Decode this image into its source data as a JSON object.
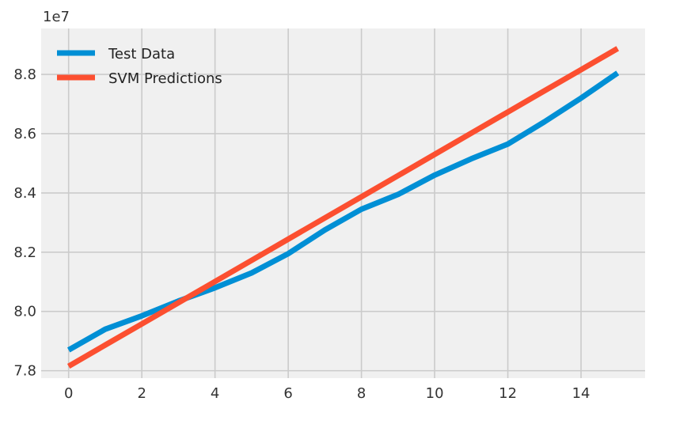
{
  "chart_data": {
    "type": "line",
    "title": "",
    "xlabel": "",
    "ylabel": "",
    "y_offset_label": "1e7",
    "xlim": [
      -0.75,
      15.75
    ],
    "ylim": [
      7.775,
      8.955
    ],
    "xticks": [
      0,
      2,
      4,
      6,
      8,
      10,
      12,
      14
    ],
    "yticks": [
      7.8,
      8.0,
      8.2,
      8.4,
      8.6,
      8.8
    ],
    "ytick_labels": [
      "7.8",
      "8.0",
      "8.2",
      "8.4",
      "8.6",
      "8.8"
    ],
    "grid": true,
    "legend_position": "upper-left",
    "x": [
      0,
      1,
      2,
      3,
      4,
      5,
      6,
      7,
      8,
      9,
      10,
      11,
      12,
      13,
      14,
      15
    ],
    "series": [
      {
        "name": "Test Data",
        "color": "#008fd5",
        "values": [
          7.87,
          7.94,
          7.985,
          8.035,
          8.08,
          8.13,
          8.195,
          8.275,
          8.345,
          8.395,
          8.46,
          8.515,
          8.565,
          8.64,
          8.72,
          8.805
        ]
      },
      {
        "name": "SVM Predictions",
        "color": "#fc4f30",
        "values": [
          7.815,
          7.8865,
          7.958,
          8.0295,
          8.101,
          8.1725,
          8.244,
          8.3155,
          8.387,
          8.4585,
          8.53,
          8.6015,
          8.673,
          8.7445,
          8.816,
          8.8875
        ]
      }
    ]
  },
  "colors": {
    "plot_background": "#f0f0f0",
    "grid": "#cbcbcb",
    "figure_background": "#ffffff"
  }
}
